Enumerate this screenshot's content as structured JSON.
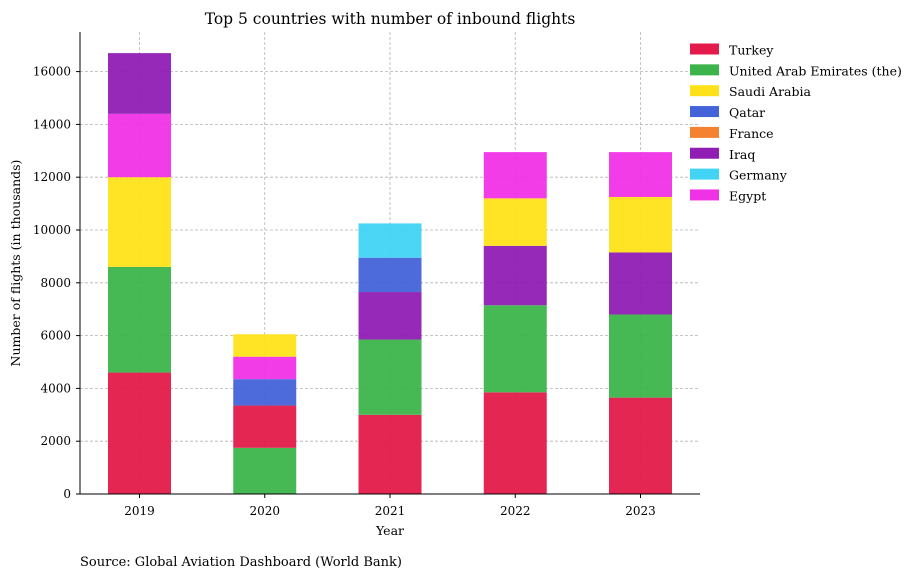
{
  "chart_data": {
    "type": "bar",
    "stacked": true,
    "title": "Top 5 countries with number of inbound flights",
    "xlabel": "Year",
    "ylabel": "Number of flights (in thousands)",
    "ylim": [
      0,
      17500
    ],
    "yticks": [
      0,
      2000,
      4000,
      6000,
      8000,
      10000,
      12000,
      14000,
      16000
    ],
    "grid": true,
    "legend_position": "top-right, outside plot",
    "categories": [
      "2019",
      "2020",
      "2021",
      "2022",
      "2023"
    ],
    "series": [
      {
        "name": "Turkey",
        "color": "#e31a4a",
        "values": [
          4600,
          1600,
          3000,
          3850,
          3650
        ]
      },
      {
        "name": "United Arab Emirates (the)",
        "color": "#3cb44b",
        "values": [
          4000,
          1750,
          2850,
          3300,
          3150
        ]
      },
      {
        "name": "Saudi Arabia",
        "color": "#ffe119",
        "values": [
          3400,
          850,
          0,
          1800,
          2100
        ]
      },
      {
        "name": "Qatar",
        "color": "#4363d8",
        "values": [
          0,
          1000,
          1300,
          0,
          0
        ]
      },
      {
        "name": "France",
        "color": "#f58231",
        "values": [
          0,
          0,
          0,
          0,
          0
        ]
      },
      {
        "name": "Iraq",
        "color": "#911eb4",
        "values": [
          2300,
          0,
          1800,
          2250,
          2350
        ]
      },
      {
        "name": "Germany",
        "color": "#42d4f4",
        "values": [
          0,
          0,
          1300,
          0,
          0
        ]
      },
      {
        "name": "Egypt",
        "color": "#f032e6",
        "values": [
          2400,
          850,
          0,
          1750,
          1700
        ]
      }
    ],
    "stack_order": [
      [
        "Turkey",
        "United Arab Emirates (the)",
        "Saudi Arabia",
        "Egypt",
        "Iraq"
      ],
      [
        "United Arab Emirates (the)",
        "Turkey",
        "Qatar",
        "Egypt",
        "Saudi Arabia"
      ],
      [
        "Turkey",
        "United Arab Emirates (the)",
        "Iraq",
        "Qatar",
        "Germany"
      ],
      [
        "Turkey",
        "United Arab Emirates (the)",
        "Iraq",
        "Saudi Arabia",
        "Egypt"
      ],
      [
        "Turkey",
        "United Arab Emirates (the)",
        "Iraq",
        "Saudi Arabia",
        "Egypt"
      ]
    ],
    "source": "Source: Global Aviation Dashboard (World Bank)"
  }
}
